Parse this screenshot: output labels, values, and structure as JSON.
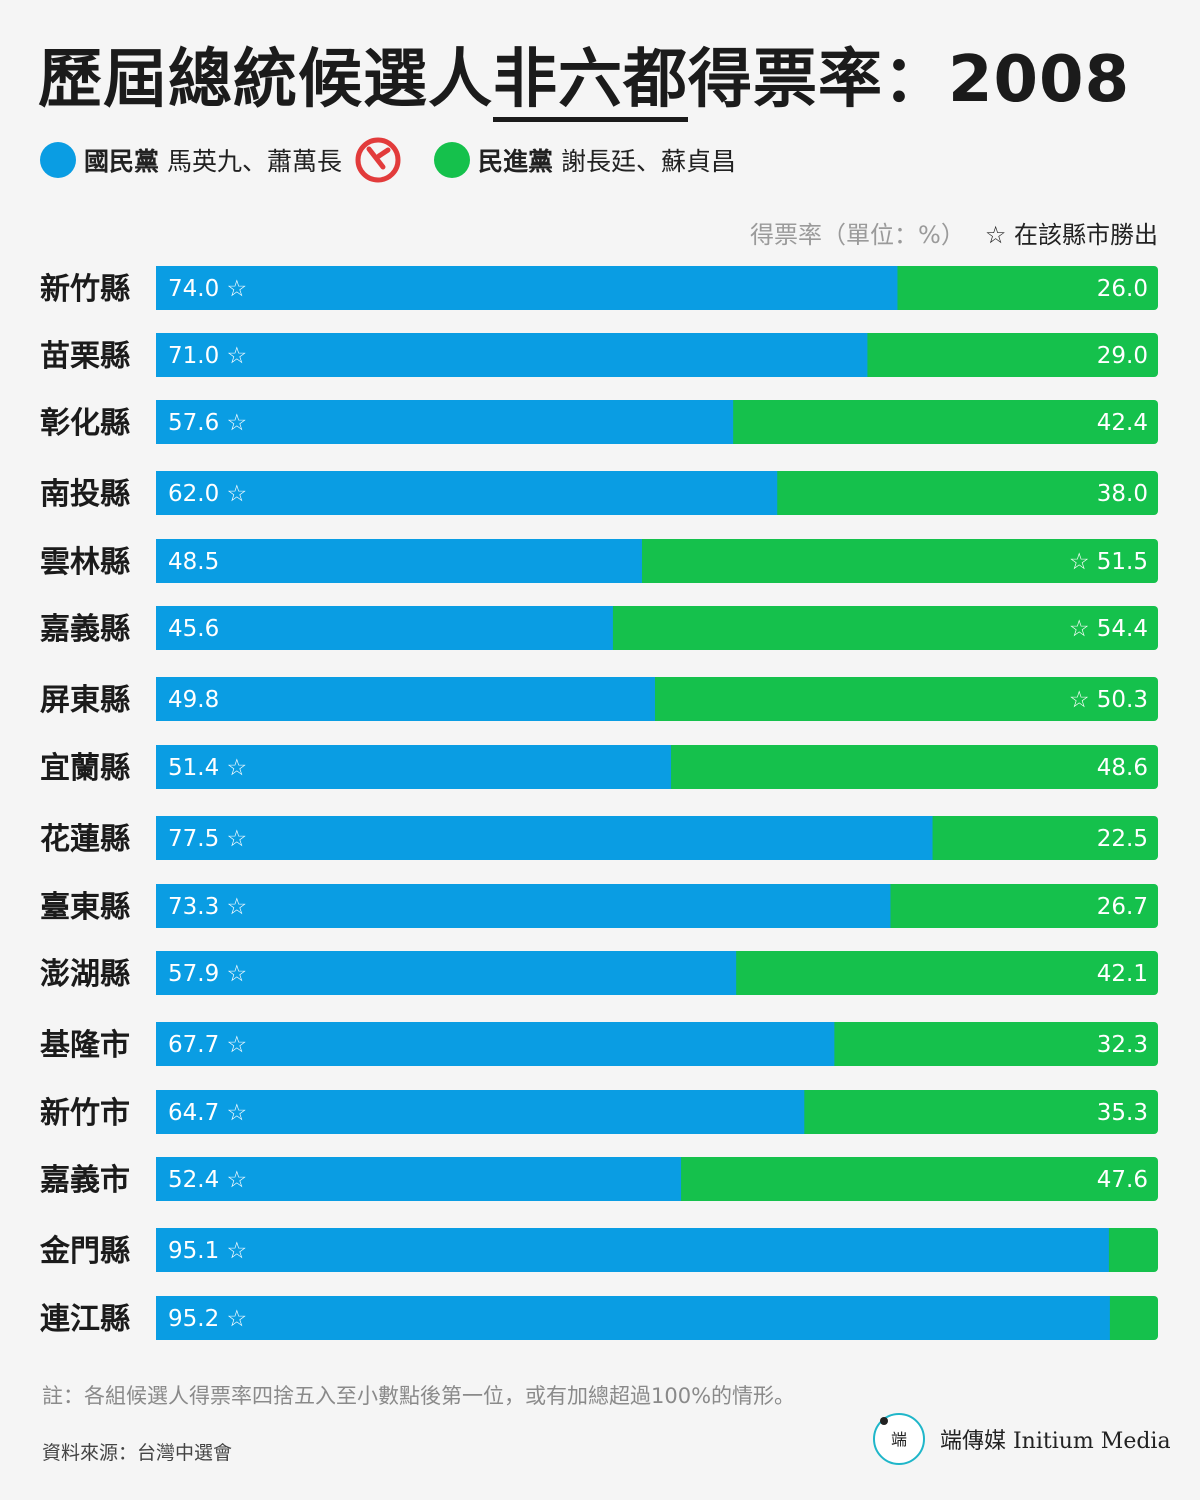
{
  "title": {
    "part1": "歷屆總統候選人",
    "highlight": "非六都",
    "part2": "得票率：2008"
  },
  "legend": {
    "kmt": {
      "party": "國民黨",
      "candidates": "馬英九、蕭萬長",
      "color": "#0a9de3"
    },
    "dpp": {
      "party": "民進黨",
      "candidates": "謝長廷、蘇貞昌",
      "color": "#15c14c"
    },
    "stamp_icon": "vote-stamp-icon"
  },
  "unit_label": "得票率（單位：%）",
  "winner_note": "☆ 在該縣市勝出",
  "chart_data": {
    "type": "bar",
    "orientation": "horizontal",
    "stacked": true,
    "categories": [
      "新竹縣",
      "苗栗縣",
      "彰化縣",
      "南投縣",
      "雲林縣",
      "嘉義縣",
      "屏東縣",
      "宜蘭縣",
      "花蓮縣",
      "臺東縣",
      "澎湖縣",
      "基隆市",
      "新竹市",
      "嘉義市",
      "金門縣",
      "連江縣"
    ],
    "series": [
      {
        "name": "國民黨",
        "color": "#0a9de3",
        "values": [
          74.0,
          71.0,
          57.6,
          62.0,
          48.5,
          45.6,
          49.8,
          51.4,
          77.5,
          73.3,
          57.9,
          67.7,
          64.7,
          52.4,
          95.1,
          95.2
        ],
        "labels": [
          "74.0",
          "71.0",
          "57.6",
          "62.0",
          "48.5",
          "45.6",
          "49.8",
          "51.4",
          "77.5",
          "73.3",
          "57.9",
          "67.7",
          "64.7",
          "52.4",
          "95.1",
          "95.2"
        ]
      },
      {
        "name": "民進黨",
        "color": "#15c14c",
        "values": [
          26.0,
          29.0,
          42.4,
          38.0,
          51.5,
          54.4,
          50.3,
          48.6,
          22.5,
          26.7,
          42.1,
          32.3,
          35.3,
          47.6,
          4.9,
          4.8
        ],
        "labels": [
          "26.0",
          "29.0",
          "42.4",
          "38.0",
          "51.5",
          "54.4",
          "50.3",
          "48.6",
          "22.5",
          "26.7",
          "42.1",
          "32.3",
          "35.3",
          "47.6",
          "",
          ""
        ]
      }
    ],
    "winner": [
      "國民黨",
      "國民黨",
      "國民黨",
      "國民黨",
      "民進黨",
      "民進黨",
      "民進黨",
      "國民黨",
      "國民黨",
      "國民黨",
      "國民黨",
      "國民黨",
      "國民黨",
      "國民黨",
      "國民黨",
      "國民黨"
    ],
    "winner_marker": "☆",
    "xlim": [
      0,
      100
    ]
  },
  "footnote": "註：各組候選人得票率四捨五入至小數點後第一位，或有加總超過100%的情形。",
  "source": "資料來源：台灣中選會",
  "brand": {
    "logo_icon": "initium-logo-icon",
    "name": "端傳媒 Initium Media"
  }
}
